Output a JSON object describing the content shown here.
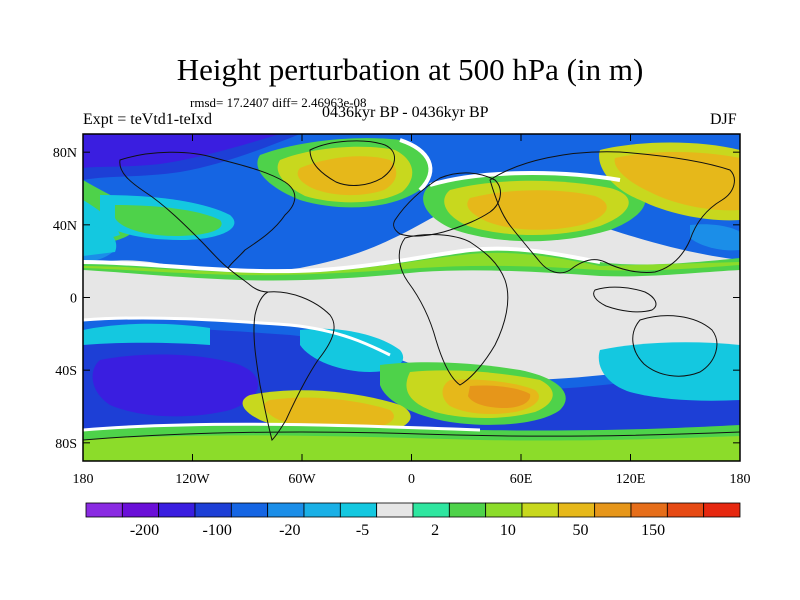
{
  "title": "Height perturbation at 500 hPa (in m)",
  "stats_line": "rmsd= 17.2407 diff= 2.46963e-08",
  "experiment_label": "Expt = teVtd1-teIxd",
  "period_label": "0436kyr BP - 0436kyr BP",
  "season": "DJF",
  "lat_ticks": [
    "80N",
    "40N",
    "0",
    "40S",
    "80S"
  ],
  "lon_ticks": [
    "180",
    "120W",
    "60W",
    "0",
    "60E",
    "120E",
    "180"
  ],
  "colorbar": {
    "labels": [
      "-200",
      "-100",
      "-20",
      "-5",
      "2",
      "10",
      "50",
      "150"
    ],
    "colors": [
      "#8a2be2",
      "#6a0fd8",
      "#3a1ee0",
      "#1d3fd6",
      "#1565e3",
      "#1b8ee8",
      "#1ab0e6",
      "#14c8e0",
      "#e6e6e6",
      "#2fe6a0",
      "#4ed24a",
      "#8cdc2a",
      "#c8d81e",
      "#e6b81a",
      "#e6961a",
      "#e66e1a",
      "#e64a14",
      "#e62810"
    ]
  },
  "palette": {
    "neutral": "#e6e6e6",
    "coast": "#111111"
  }
}
